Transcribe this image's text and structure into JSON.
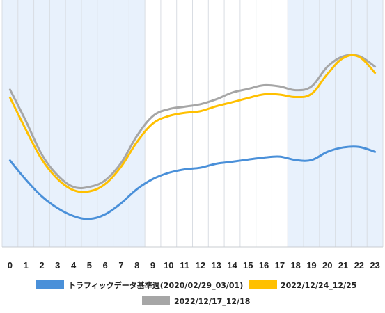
{
  "chart_data": {
    "type": "line",
    "title": "",
    "xlabel": "",
    "ylabel": "",
    "categories": [
      "0",
      "1",
      "2",
      "3",
      "4",
      "5",
      "6",
      "7",
      "8",
      "9",
      "10",
      "11",
      "12",
      "13",
      "14",
      "15",
      "16",
      "17",
      "18",
      "19",
      "20",
      "21",
      "22",
      "23"
    ],
    "ylim": [
      0,
      100
    ],
    "grid": true,
    "y_tick_labels_shown": false,
    "shaded_ranges": [
      [
        -0.5,
        8.5
      ],
      [
        17.5,
        23.5
      ]
    ],
    "shade_color": "#e8f1fc",
    "legend_position": "bottom",
    "series": [
      {
        "name": "トラフィックデータ基準週(2020/02/29_03/01)",
        "color": "#4a90d9",
        "values": [
          35.0,
          27.2,
          20.5,
          15.7,
          12.5,
          11.3,
          13.2,
          17.7,
          23.4,
          27.5,
          30.0,
          31.4,
          32.1,
          33.7,
          34.5,
          35.4,
          36.2,
          36.6,
          35.2,
          35.2,
          38.5,
          40.3,
          40.5,
          38.5
        ]
      },
      {
        "name": "2022/12/24_12/25",
        "color": "#ffc000",
        "values": [
          60.5,
          47.5,
          35.5,
          27.5,
          23.0,
          22.5,
          25.5,
          32.5,
          42.5,
          50.0,
          53.0,
          54.3,
          55.0,
          57.0,
          58.6,
          60.3,
          61.8,
          61.7,
          60.7,
          62.0,
          70.0,
          76.5,
          77.0,
          70.5
        ]
      },
      {
        "name": "2022/12/17_12/18",
        "color": "#a6a6a6",
        "values": [
          63.7,
          51.0,
          37.5,
          29.0,
          24.3,
          24.3,
          27.0,
          34.0,
          45.0,
          53.0,
          55.8,
          56.8,
          57.8,
          59.8,
          62.5,
          64.0,
          65.5,
          65.0,
          63.5,
          65.0,
          73.0,
          77.2,
          77.3,
          73.0
        ]
      }
    ]
  }
}
